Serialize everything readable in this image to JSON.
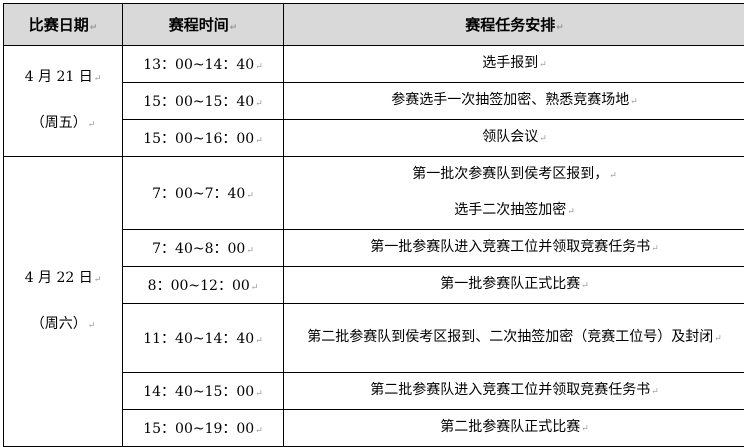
{
  "headers": [
    "比赛日期",
    "赛程时间",
    "赛程任务安排"
  ],
  "days": [
    {
      "date": "4 月 21 日",
      "weekday": "（周五）",
      "items": [
        {
          "time": "13：00~14：40",
          "task": "选手报到"
        },
        {
          "time": "15：00~15：40",
          "task": "参赛选手一次抽签加密、熟悉竞赛场地"
        },
        {
          "time": "15：00~16：00",
          "task": "领队会议"
        }
      ]
    },
    {
      "date": "4 月 22 日",
      "weekday": "（周六）",
      "items": [
        {
          "time": "7：00~7：40",
          "task": "第一批次参赛队到侯考区报到，",
          "task2": "选手二次抽签加密"
        },
        {
          "time": "7：40~8：00",
          "task": "第一批参赛队进入竞赛工位并领取竞赛任务书"
        },
        {
          "time": "8：00~12：00",
          "task": "第一批参赛队正式比赛"
        },
        {
          "time": "11：40~14：40",
          "task": "第二批参赛队到侯考区报到、二次抽签加密（竞赛工位号）及封闭"
        },
        {
          "time": "14：40~15：00",
          "task": "第二批参赛队进入竞赛工位并领取竞赛任务书"
        },
        {
          "time": "15：00~19：00",
          "task": "第二批参赛队正式比赛"
        }
      ]
    }
  ]
}
